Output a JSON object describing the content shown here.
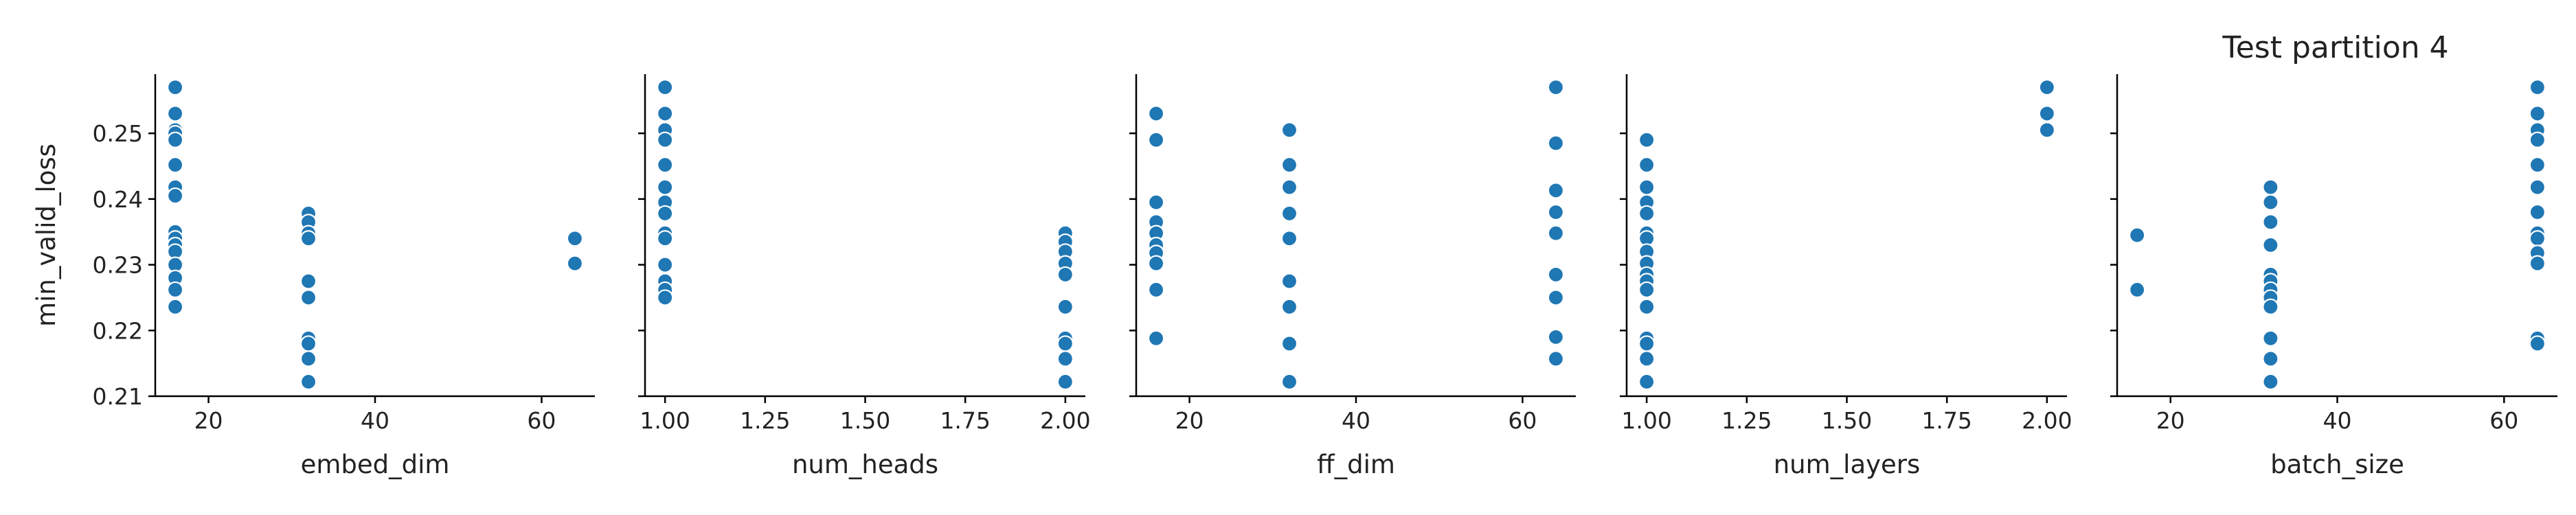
{
  "title": "Test partition 4",
  "chart_data": {
    "type": "scatter",
    "title": "Test partition 4",
    "ylabel": "min_valid_loss",
    "ylim": [
      0.21,
      0.259
    ],
    "yticks": [
      0.21,
      0.22,
      0.23,
      0.24,
      0.25
    ],
    "ytick_labels": [
      "0.21",
      "0.22",
      "0.23",
      "0.24",
      "0.25"
    ],
    "color": "#1f77b4",
    "panels": [
      {
        "xlabel": "embed_dim",
        "xlim": [
          13.6,
          66.4
        ],
        "xticks": [
          20,
          40,
          60
        ],
        "xtick_labels": [
          "20",
          "40",
          "60"
        ],
        "points": [
          [
            16,
            0.257
          ],
          [
            16,
            0.253
          ],
          [
            16,
            0.2505
          ],
          [
            16,
            0.25
          ],
          [
            16,
            0.249
          ],
          [
            16,
            0.2452
          ],
          [
            16,
            0.2418
          ],
          [
            16,
            0.2405
          ],
          [
            16,
            0.235
          ],
          [
            16,
            0.234
          ],
          [
            16,
            0.233
          ],
          [
            16,
            0.232
          ],
          [
            16,
            0.23
          ],
          [
            16,
            0.228
          ],
          [
            16,
            0.2262
          ],
          [
            16,
            0.2236
          ],
          [
            32,
            0.2378
          ],
          [
            32,
            0.2365
          ],
          [
            32,
            0.2348
          ],
          [
            32,
            0.234
          ],
          [
            32,
            0.2275
          ],
          [
            32,
            0.225
          ],
          [
            32,
            0.2188
          ],
          [
            32,
            0.218
          ],
          [
            32,
            0.2157
          ],
          [
            32,
            0.2122
          ],
          [
            64,
            0.234
          ],
          [
            64,
            0.2302
          ]
        ]
      },
      {
        "xlabel": "num_heads",
        "xlim": [
          0.95,
          2.05
        ],
        "xticks": [
          1.0,
          1.25,
          1.5,
          1.75,
          2.0
        ],
        "xtick_labels": [
          "1.00",
          "1.25",
          "1.50",
          "1.75",
          "2.00"
        ],
        "points": [
          [
            1,
            0.257
          ],
          [
            1,
            0.253
          ],
          [
            1,
            0.2505
          ],
          [
            1,
            0.249
          ],
          [
            1,
            0.2452
          ],
          [
            1,
            0.2418
          ],
          [
            1,
            0.2395
          ],
          [
            1,
            0.2378
          ],
          [
            1,
            0.2348
          ],
          [
            1,
            0.234
          ],
          [
            1,
            0.23
          ],
          [
            1,
            0.2275
          ],
          [
            1,
            0.2262
          ],
          [
            1,
            0.225
          ],
          [
            2,
            0.2348
          ],
          [
            2,
            0.2335
          ],
          [
            2,
            0.232
          ],
          [
            2,
            0.2302
          ],
          [
            2,
            0.2285
          ],
          [
            2,
            0.2236
          ],
          [
            2,
            0.2188
          ],
          [
            2,
            0.218
          ],
          [
            2,
            0.2157
          ],
          [
            2,
            0.2122
          ]
        ]
      },
      {
        "xlabel": "ff_dim",
        "xlim": [
          13.6,
          66.4
        ],
        "xticks": [
          20,
          40,
          60
        ],
        "xtick_labels": [
          "20",
          "40",
          "60"
        ],
        "points": [
          [
            16,
            0.253
          ],
          [
            16,
            0.249
          ],
          [
            16,
            0.2395
          ],
          [
            16,
            0.2365
          ],
          [
            16,
            0.2348
          ],
          [
            16,
            0.233
          ],
          [
            16,
            0.2318
          ],
          [
            16,
            0.2302
          ],
          [
            16,
            0.2262
          ],
          [
            16,
            0.2188
          ],
          [
            32,
            0.2505
          ],
          [
            32,
            0.2452
          ],
          [
            32,
            0.2418
          ],
          [
            32,
            0.2378
          ],
          [
            32,
            0.234
          ],
          [
            32,
            0.2275
          ],
          [
            32,
            0.2236
          ],
          [
            32,
            0.218
          ],
          [
            32,
            0.2122
          ],
          [
            64,
            0.257
          ],
          [
            64,
            0.2485
          ],
          [
            64,
            0.2413
          ],
          [
            64,
            0.238
          ],
          [
            64,
            0.2348
          ],
          [
            64,
            0.2285
          ],
          [
            64,
            0.225
          ],
          [
            64,
            0.219
          ],
          [
            64,
            0.2157
          ]
        ]
      },
      {
        "xlabel": "num_layers",
        "xlim": [
          0.95,
          2.05
        ],
        "xticks": [
          1.0,
          1.25,
          1.5,
          1.75,
          2.0
        ],
        "xtick_labels": [
          "1.00",
          "1.25",
          "1.50",
          "1.75",
          "2.00"
        ],
        "points": [
          [
            1,
            0.249
          ],
          [
            1,
            0.2452
          ],
          [
            1,
            0.2418
          ],
          [
            1,
            0.2395
          ],
          [
            1,
            0.2378
          ],
          [
            1,
            0.2348
          ],
          [
            1,
            0.234
          ],
          [
            1,
            0.232
          ],
          [
            1,
            0.2302
          ],
          [
            1,
            0.2285
          ],
          [
            1,
            0.2275
          ],
          [
            1,
            0.2262
          ],
          [
            1,
            0.2236
          ],
          [
            1,
            0.2188
          ],
          [
            1,
            0.218
          ],
          [
            1,
            0.2157
          ],
          [
            1,
            0.2122
          ],
          [
            2,
            0.257
          ],
          [
            2,
            0.253
          ],
          [
            2,
            0.2505
          ]
        ]
      },
      {
        "xlabel": "batch_size",
        "xlim": [
          13.6,
          66.4
        ],
        "xticks": [
          20,
          40,
          60
        ],
        "xtick_labels": [
          "20",
          "40",
          "60"
        ],
        "points": [
          [
            16,
            0.2345
          ],
          [
            16,
            0.2262
          ],
          [
            32,
            0.2418
          ],
          [
            32,
            0.2395
          ],
          [
            32,
            0.2365
          ],
          [
            32,
            0.233
          ],
          [
            32,
            0.2285
          ],
          [
            32,
            0.2275
          ],
          [
            32,
            0.2262
          ],
          [
            32,
            0.225
          ],
          [
            32,
            0.2236
          ],
          [
            32,
            0.2188
          ],
          [
            32,
            0.2157
          ],
          [
            32,
            0.2122
          ],
          [
            64,
            0.257
          ],
          [
            64,
            0.253
          ],
          [
            64,
            0.2505
          ],
          [
            64,
            0.249
          ],
          [
            64,
            0.2452
          ],
          [
            64,
            0.2418
          ],
          [
            64,
            0.238
          ],
          [
            64,
            0.2348
          ],
          [
            64,
            0.234
          ],
          [
            64,
            0.2318
          ],
          [
            64,
            0.2302
          ],
          [
            64,
            0.2188
          ],
          [
            64,
            0.218
          ]
        ]
      }
    ]
  }
}
